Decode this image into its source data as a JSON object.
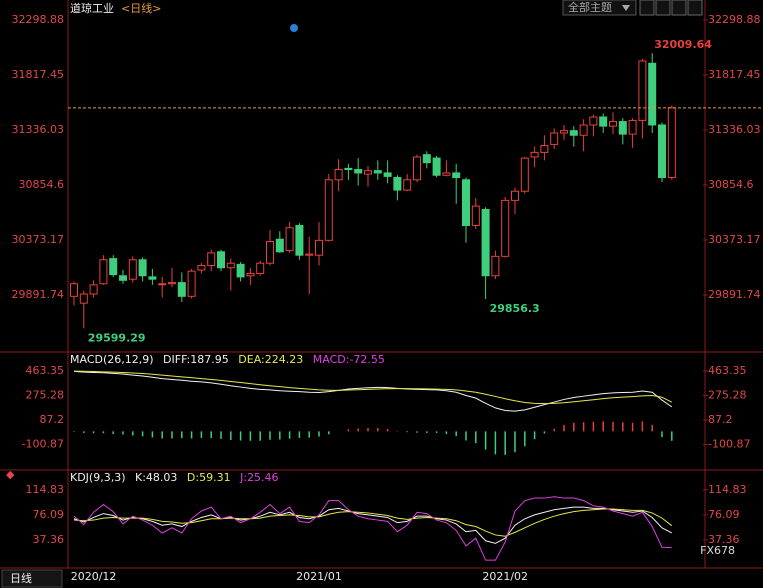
{
  "header": {
    "title": "道琼工业",
    "period": "<日线>",
    "theme_button": "全部主题",
    "period_button": "日线",
    "watermark": "FX678"
  },
  "chart_data": [
    {
      "type": "candlestick",
      "categories": [
        null,
        null,
        "2020/12",
        null,
        null,
        null,
        null,
        null,
        null,
        null,
        null,
        null,
        null,
        null,
        null,
        null,
        null,
        null,
        null,
        null,
        null,
        null,
        null,
        null,
        null,
        "2021/01",
        null,
        null,
        null,
        null,
        null,
        null,
        null,
        null,
        null,
        null,
        null,
        null,
        null,
        null,
        null,
        null,
        null,
        null,
        "2021/02",
        null,
        null,
        null,
        null,
        null,
        null,
        null,
        null,
        null,
        null,
        null,
        null,
        null,
        null,
        null,
        null,
        null
      ],
      "open": [
        29880,
        29820,
        29900,
        29990,
        30210,
        30060,
        30030,
        30200,
        30050,
        29990,
        29990,
        30000,
        29880,
        30110,
        30150,
        30270,
        30130,
        30160,
        30060,
        30080,
        30170,
        30380,
        30280,
        30500,
        30240,
        30240,
        30370,
        30900,
        31000,
        30990,
        30950,
        30980,
        30960,
        30920,
        30810,
        30900,
        31120,
        31090,
        30940,
        30960,
        30900,
        30500,
        30640,
        30060,
        30230,
        30720,
        30800,
        31100,
        31140,
        31210,
        31310,
        31330,
        31290,
        31380,
        31450,
        31370,
        31410,
        31300,
        31420,
        31920,
        31380,
        30920
      ],
      "high": [
        30010,
        29930,
        30020,
        30240,
        30240,
        30110,
        30230,
        30220,
        30120,
        30050,
        30130,
        30090,
        30120,
        30170,
        30290,
        30290,
        30210,
        30180,
        30130,
        30190,
        30460,
        30450,
        30530,
        30520,
        30400,
        30530,
        30950,
        31080,
        31040,
        31090,
        31020,
        31070,
        31070,
        30940,
        30950,
        31120,
        31150,
        31110,
        31070,
        31040,
        30920,
        30740,
        30660,
        30280,
        30750,
        30830,
        31100,
        31190,
        31290,
        31350,
        31380,
        31370,
        31430,
        31470,
        31480,
        31490,
        31440,
        31440,
        31960,
        32009.64,
        31400,
        31550
      ],
      "low": [
        29800,
        29599.29,
        29870,
        29980,
        30050,
        29990,
        30000,
        30010,
        29980,
        29870,
        29960,
        29830,
        29860,
        30080,
        30100,
        30100,
        29930,
        30010,
        29980,
        30060,
        30150,
        30260,
        30260,
        30200,
        29900,
        30150,
        30360,
        30800,
        30900,
        30850,
        30840,
        30900,
        30870,
        30720,
        30800,
        30880,
        31000,
        30920,
        30930,
        30690,
        30350,
        30470,
        29856.3,
        30030,
        30220,
        30600,
        30780,
        31010,
        31070,
        31170,
        31250,
        31190,
        31150,
        31280,
        31310,
        31300,
        31210,
        31180,
        31260,
        31310,
        30880,
        30900
      ],
      "close": [
        29990,
        29900,
        29980,
        30200,
        30070,
        30020,
        30200,
        30060,
        30030,
        29990,
        30000,
        29880,
        30100,
        30150,
        30260,
        30130,
        30170,
        30050,
        30080,
        30170,
        30360,
        30270,
        30480,
        30240,
        30250,
        30370,
        30900,
        30990,
        30990,
        30960,
        30980,
        30960,
        30930,
        30810,
        30900,
        31100,
        31050,
        30940,
        30960,
        30920,
        30500,
        30670,
        30060,
        30230,
        30720,
        30800,
        31090,
        31140,
        31200,
        31310,
        31330,
        31290,
        31380,
        31450,
        31370,
        31410,
        31300,
        31420,
        31940,
        31380,
        30920,
        31530
      ],
      "up_color": "#e8413c",
      "down_color": "#3fcf7c",
      "last_line_color": "#e89a3c",
      "ylim": [
        29410,
        32369
      ],
      "yticks": [
        32298.88,
        31817.45,
        31336.03,
        30854.6,
        30373.17,
        29891.74
      ]
    },
    {
      "type": "combo",
      "title": "MACD(26,12,9)",
      "series": [
        {
          "name": "DIFF:",
          "color": "#f2f2f2",
          "kind": "line",
          "values": [
            460,
            455,
            452,
            450,
            445,
            440,
            432,
            425,
            415,
            405,
            398,
            392,
            385,
            380,
            372,
            362,
            350,
            340,
            330,
            322,
            318,
            312,
            308,
            305,
            300,
            298,
            305,
            315,
            325,
            330,
            335,
            338,
            336,
            330,
            325,
            322,
            320,
            318,
            312,
            300,
            275,
            255,
            215,
            180,
            160,
            155,
            165,
            185,
            205,
            225,
            245,
            260,
            270,
            280,
            290,
            295,
            298,
            300,
            310,
            300,
            240,
            187.95
          ]
        },
        {
          "name": "DEA:",
          "color": "#e8e84a",
          "kind": "line",
          "values": [
            462,
            461,
            459,
            457,
            455,
            452,
            448,
            444,
            438,
            432,
            425,
            418,
            412,
            405,
            398,
            391,
            383,
            375,
            366,
            358,
            350,
            343,
            336,
            330,
            324,
            318,
            316,
            315,
            317,
            319,
            322,
            325,
            327,
            328,
            328,
            327,
            326,
            324,
            322,
            318,
            310,
            300,
            285,
            268,
            250,
            235,
            222,
            215,
            213,
            215,
            220,
            227,
            235,
            243,
            251,
            258,
            263,
            267,
            272,
            275,
            262,
            224.23
          ]
        },
        {
          "name": "MACD:",
          "color": "#e040e0",
          "kind": "bar",
          "up_color": "#e8413c",
          "down_color": "#3fcf7c",
          "values": [
            -4,
            -12,
            -14,
            -14,
            -20,
            -24,
            -32,
            -38,
            -46,
            -54,
            -54,
            -52,
            -54,
            -50,
            -52,
            -58,
            -66,
            -70,
            -72,
            -72,
            -64,
            -62,
            -56,
            -50,
            -48,
            -40,
            -22,
            0,
            16,
            22,
            26,
            26,
            18,
            4,
            -6,
            -10,
            -12,
            -12,
            -20,
            -36,
            -70,
            -90,
            -140,
            -176,
            -180,
            -160,
            -114,
            -60,
            -16,
            20,
            50,
            66,
            70,
            74,
            78,
            74,
            70,
            66,
            76,
            50,
            -44,
            -72.55
          ]
        }
      ],
      "ylim": [
        -281,
        563
      ],
      "yticks": [
        463.35,
        275.28,
        87.2,
        -100.87
      ]
    },
    {
      "type": "line",
      "title": "KDJ(9,3,3)",
      "series": [
        {
          "name": "K:",
          "color": "#f2f2f2",
          "values": [
            70,
            65,
            72,
            78,
            75,
            68,
            72,
            70,
            66,
            60,
            62,
            58,
            66,
            72,
            76,
            70,
            72,
            68,
            70,
            74,
            80,
            76,
            80,
            72,
            70,
            74,
            84,
            86,
            82,
            78,
            76,
            74,
            72,
            64,
            66,
            74,
            74,
            70,
            68,
            62,
            50,
            52,
            36,
            32,
            40,
            60,
            70,
            76,
            80,
            84,
            86,
            88,
            88,
            86,
            86,
            84,
            82,
            80,
            82,
            72,
            56,
            48.03
          ]
        },
        {
          "name": "D:",
          "color": "#e8e84a",
          "values": [
            68,
            67,
            68,
            71,
            72,
            71,
            71,
            71,
            69,
            66,
            65,
            63,
            64,
            67,
            70,
            70,
            71,
            70,
            70,
            71,
            74,
            75,
            76,
            75,
            73,
            73,
            77,
            80,
            81,
            80,
            79,
            77,
            75,
            71,
            69,
            71,
            72,
            71,
            70,
            67,
            61,
            58,
            51,
            45,
            43,
            49,
            56,
            63,
            69,
            74,
            78,
            81,
            83,
            84,
            85,
            85,
            84,
            83,
            83,
            79,
            71,
            59.31
          ]
        },
        {
          "name": "J:",
          "color": "#e040e0",
          "values": [
            74,
            61,
            80,
            92,
            81,
            62,
            74,
            68,
            60,
            48,
            56,
            48,
            70,
            82,
            88,
            70,
            74,
            64,
            70,
            80,
            92,
            78,
            88,
            66,
            64,
            76,
            98,
            98,
            84,
            74,
            70,
            68,
            66,
            50,
            60,
            80,
            78,
            68,
            64,
            52,
            28,
            40,
            6,
            6,
            34,
            82,
            98,
            102,
            102,
            104,
            102,
            102,
            98,
            90,
            88,
            82,
            78,
            74,
            80,
            58,
            26,
            25.46
          ]
        }
      ],
      "ylim": [
        -3,
        133
      ],
      "yticks": [
        114.83,
        76.09,
        37.36
      ]
    }
  ]
}
